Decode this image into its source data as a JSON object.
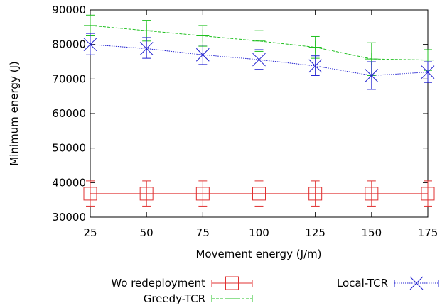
{
  "chart_data": {
    "type": "line",
    "xlabel": "Movement energy (J/m)",
    "ylabel": "Minimum energy (J)",
    "x": [
      25,
      50,
      75,
      100,
      125,
      150,
      175
    ],
    "xlim": [
      25,
      175
    ],
    "ylim": [
      30000,
      90000
    ],
    "xticks": [
      "25",
      "50",
      "75",
      "100",
      "125",
      "150",
      "175"
    ],
    "yticks": [
      "30000",
      "40000",
      "50000",
      "60000",
      "70000",
      "80000",
      "90000"
    ],
    "grid": false,
    "legend_position": "bottom",
    "series": [
      {
        "name": "Wo redeployment",
        "color": "#e03030",
        "marker": "square",
        "values": [
          36800,
          36800,
          36800,
          36800,
          36800,
          36800,
          36800
        ],
        "err_low": [
          33200,
          33200,
          33200,
          33200,
          33200,
          33200,
          33200
        ],
        "err_high": [
          40500,
          40500,
          40500,
          40500,
          40500,
          40500,
          40500
        ]
      },
      {
        "name": "Greedy-TCR",
        "color": "#20c020",
        "marker": "plus",
        "values": [
          85500,
          84000,
          82500,
          81000,
          79200,
          75800,
          75500
        ],
        "err_low": [
          82500,
          81000,
          79500,
          78000,
          76000,
          71000,
          72500
        ],
        "err_high": [
          88500,
          87000,
          85500,
          84000,
          82300,
          80500,
          78500
        ]
      },
      {
        "name": "Local-TCR",
        "color": "#2020d0",
        "marker": "x",
        "values": [
          80000,
          78800,
          77000,
          75600,
          73800,
          71000,
          72000
        ],
        "err_low": [
          77000,
          76000,
          74200,
          72800,
          71000,
          67000,
          69000
        ],
        "err_high": [
          83200,
          82000,
          79800,
          78500,
          76700,
          75000,
          75000
        ]
      }
    ]
  }
}
